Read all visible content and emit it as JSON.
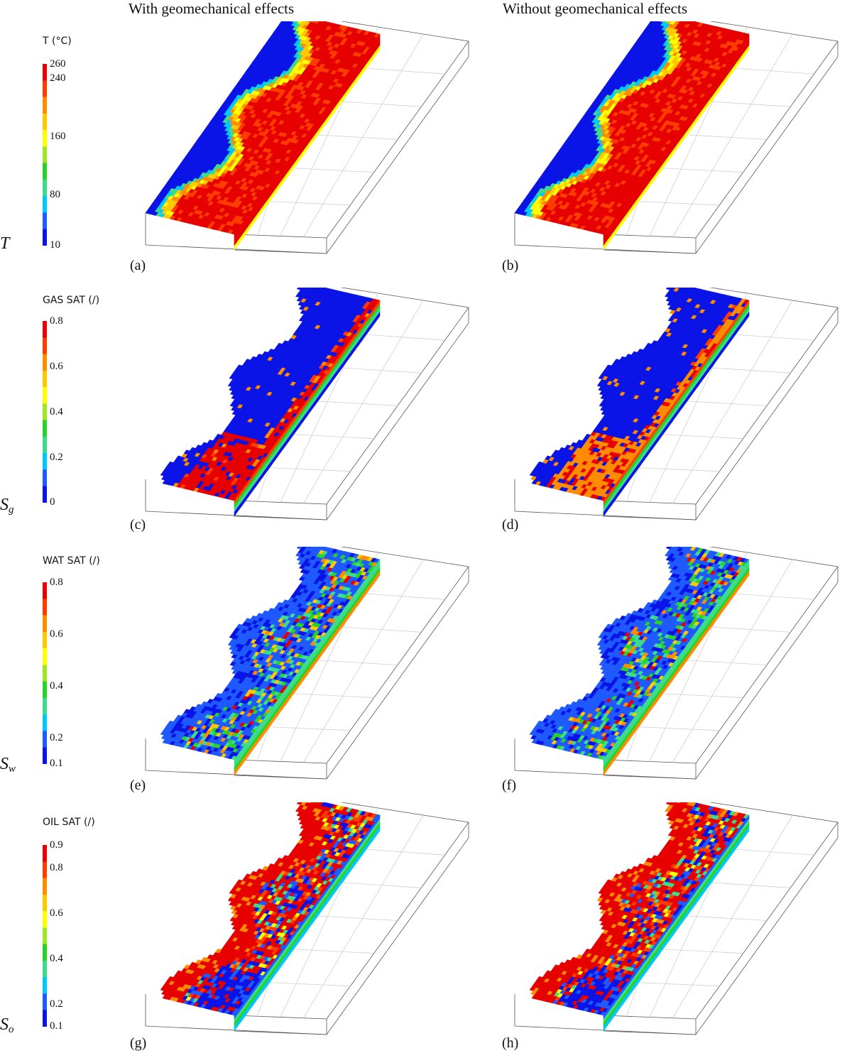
{
  "columns": {
    "left": "With geomechanical effects",
    "right": "Without geomechanical effects"
  },
  "rows": [
    {
      "id": "T",
      "var_main": "T",
      "var_sub": "",
      "legend_title": "T (°C)",
      "ticks": [
        "260",
        "240",
        "160",
        "80",
        "10"
      ],
      "tick_values": [
        260,
        240,
        160,
        80,
        10
      ],
      "range": [
        10,
        260
      ],
      "labels": [
        "(a)",
        "(b)"
      ],
      "field": "temperature"
    },
    {
      "id": "Sg",
      "var_main": "S",
      "var_sub": "g",
      "legend_title": "GAS SAT (/)",
      "ticks": [
        "0.8",
        "0.6",
        "0.4",
        "0.2",
        "0"
      ],
      "tick_values": [
        0.8,
        0.6,
        0.4,
        0.2,
        0
      ],
      "range": [
        0,
        0.8
      ],
      "labels": [
        "(c)",
        "(d)"
      ],
      "field": "gas"
    },
    {
      "id": "Sw",
      "var_main": "S",
      "var_sub": "w",
      "legend_title": "WAT SAT (/)",
      "ticks": [
        "0.8",
        "0.6",
        "0.4",
        "0.2",
        "0.1"
      ],
      "tick_values": [
        0.8,
        0.6,
        0.4,
        0.2,
        0.1
      ],
      "range": [
        0.1,
        0.8
      ],
      "labels": [
        "(e)",
        "(f)"
      ],
      "field": "water"
    },
    {
      "id": "So",
      "var_main": "S",
      "var_sub": "o",
      "legend_title": "OIL SAT (/)",
      "ticks": [
        "0.9",
        "0.8",
        "0.6",
        "0.4",
        "0.2",
        "0.1"
      ],
      "tick_values": [
        0.9,
        0.8,
        0.6,
        0.4,
        0.2,
        0.1
      ],
      "range": [
        0.1,
        0.9
      ],
      "labels": [
        "(g)",
        "(h)"
      ],
      "field": "oil"
    }
  ],
  "colors": {
    "colormap": [
      "#0a14e6",
      "#1e5aff",
      "#00c8ff",
      "#3cdc8c",
      "#28d228",
      "#a0e628",
      "#ffff00",
      "#ffc800",
      "#ff8c00",
      "#ff3c00",
      "#e60000"
    ]
  }
}
